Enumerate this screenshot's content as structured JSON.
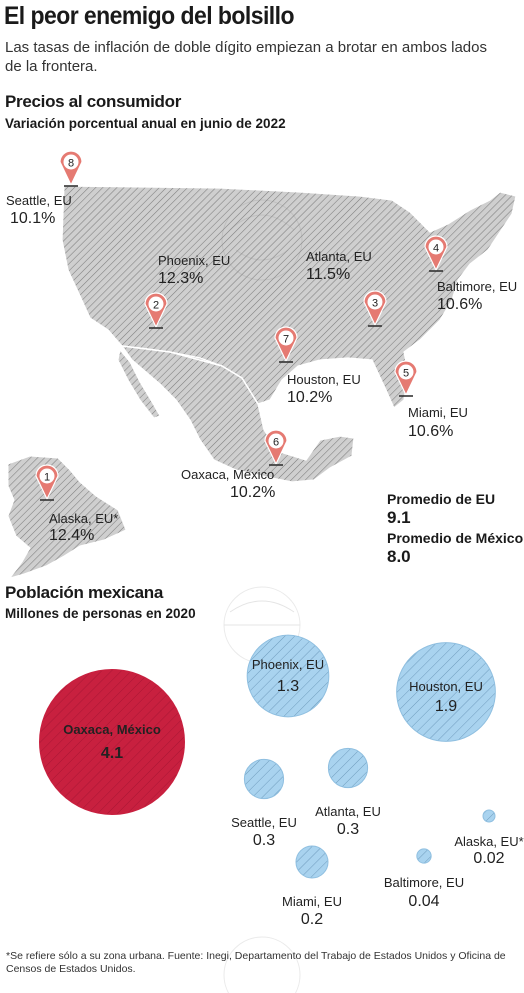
{
  "title": "El peor enemigo del bolsillo",
  "subtitle": "Las tasas de inflación de doble dígito empiezan a brotar en ambos lados de la frontera.",
  "section1": {
    "title": "Precios al consumidor",
    "subtitle": "Variación porcentual anual en junio de 2022"
  },
  "averages": {
    "us_label": "Promedio de EU",
    "us_value": "9.1",
    "mx_label": "Promedio de México",
    "mx_value": "8.0"
  },
  "section2": {
    "title": "Población mexicana",
    "subtitle": "Millones de personas en 2020"
  },
  "footnote": "*Se refiere sólo a su zona urbana. Fuente: Inegi, Departamento del Trabajo de Estados Unidos y Oficina de Censos de Estados Unidos.",
  "colors": {
    "map_fill": "#c9c9c9",
    "pin": "#e57a72",
    "oaxaca": "#c8203f",
    "bubble": "#a9d3ef"
  },
  "chart_data": [
    {
      "type": "map",
      "title": "Precios al consumidor",
      "subtitle": "Variación porcentual anual en junio de 2022",
      "points": [
        {
          "rank": "1",
          "city": "Alaska, EU*",
          "value": "12.4%"
        },
        {
          "rank": "2",
          "city": "Phoenix, EU",
          "value": "12.3%"
        },
        {
          "rank": "3",
          "city": "Atlanta, EU",
          "value": "11.5%"
        },
        {
          "rank": "4",
          "city": "Baltimore, EU",
          "value": "10.6%"
        },
        {
          "rank": "5",
          "city": "Miami, EU",
          "value": "10.6%"
        },
        {
          "rank": "6",
          "city": "Oaxaca, México",
          "value": "10.2%"
        },
        {
          "rank": "7",
          "city": "Houston, EU",
          "value": "10.2%"
        },
        {
          "rank": "8",
          "city": "Seattle, EU",
          "value": "10.1%"
        }
      ]
    },
    {
      "type": "bubble",
      "title": "Población mexicana",
      "subtitle": "Millones de personas en 2020",
      "points": [
        {
          "city": "Oaxaca, México",
          "value": 4.1,
          "label": "4.1"
        },
        {
          "city": "Houston, EU",
          "value": 1.9,
          "label": "1.9"
        },
        {
          "city": "Phoenix, EU",
          "value": 1.3,
          "label": "1.3"
        },
        {
          "city": "Seattle, EU",
          "value": 0.3,
          "label": "0.3"
        },
        {
          "city": "Atlanta, EU",
          "value": 0.3,
          "label": "0.3"
        },
        {
          "city": "Miami, EU",
          "value": 0.2,
          "label": "0.2"
        },
        {
          "city": "Baltimore, EU",
          "value": 0.04,
          "label": "0.04"
        },
        {
          "city": "Alaska, EU*",
          "value": 0.02,
          "label": "0.02"
        }
      ]
    }
  ]
}
